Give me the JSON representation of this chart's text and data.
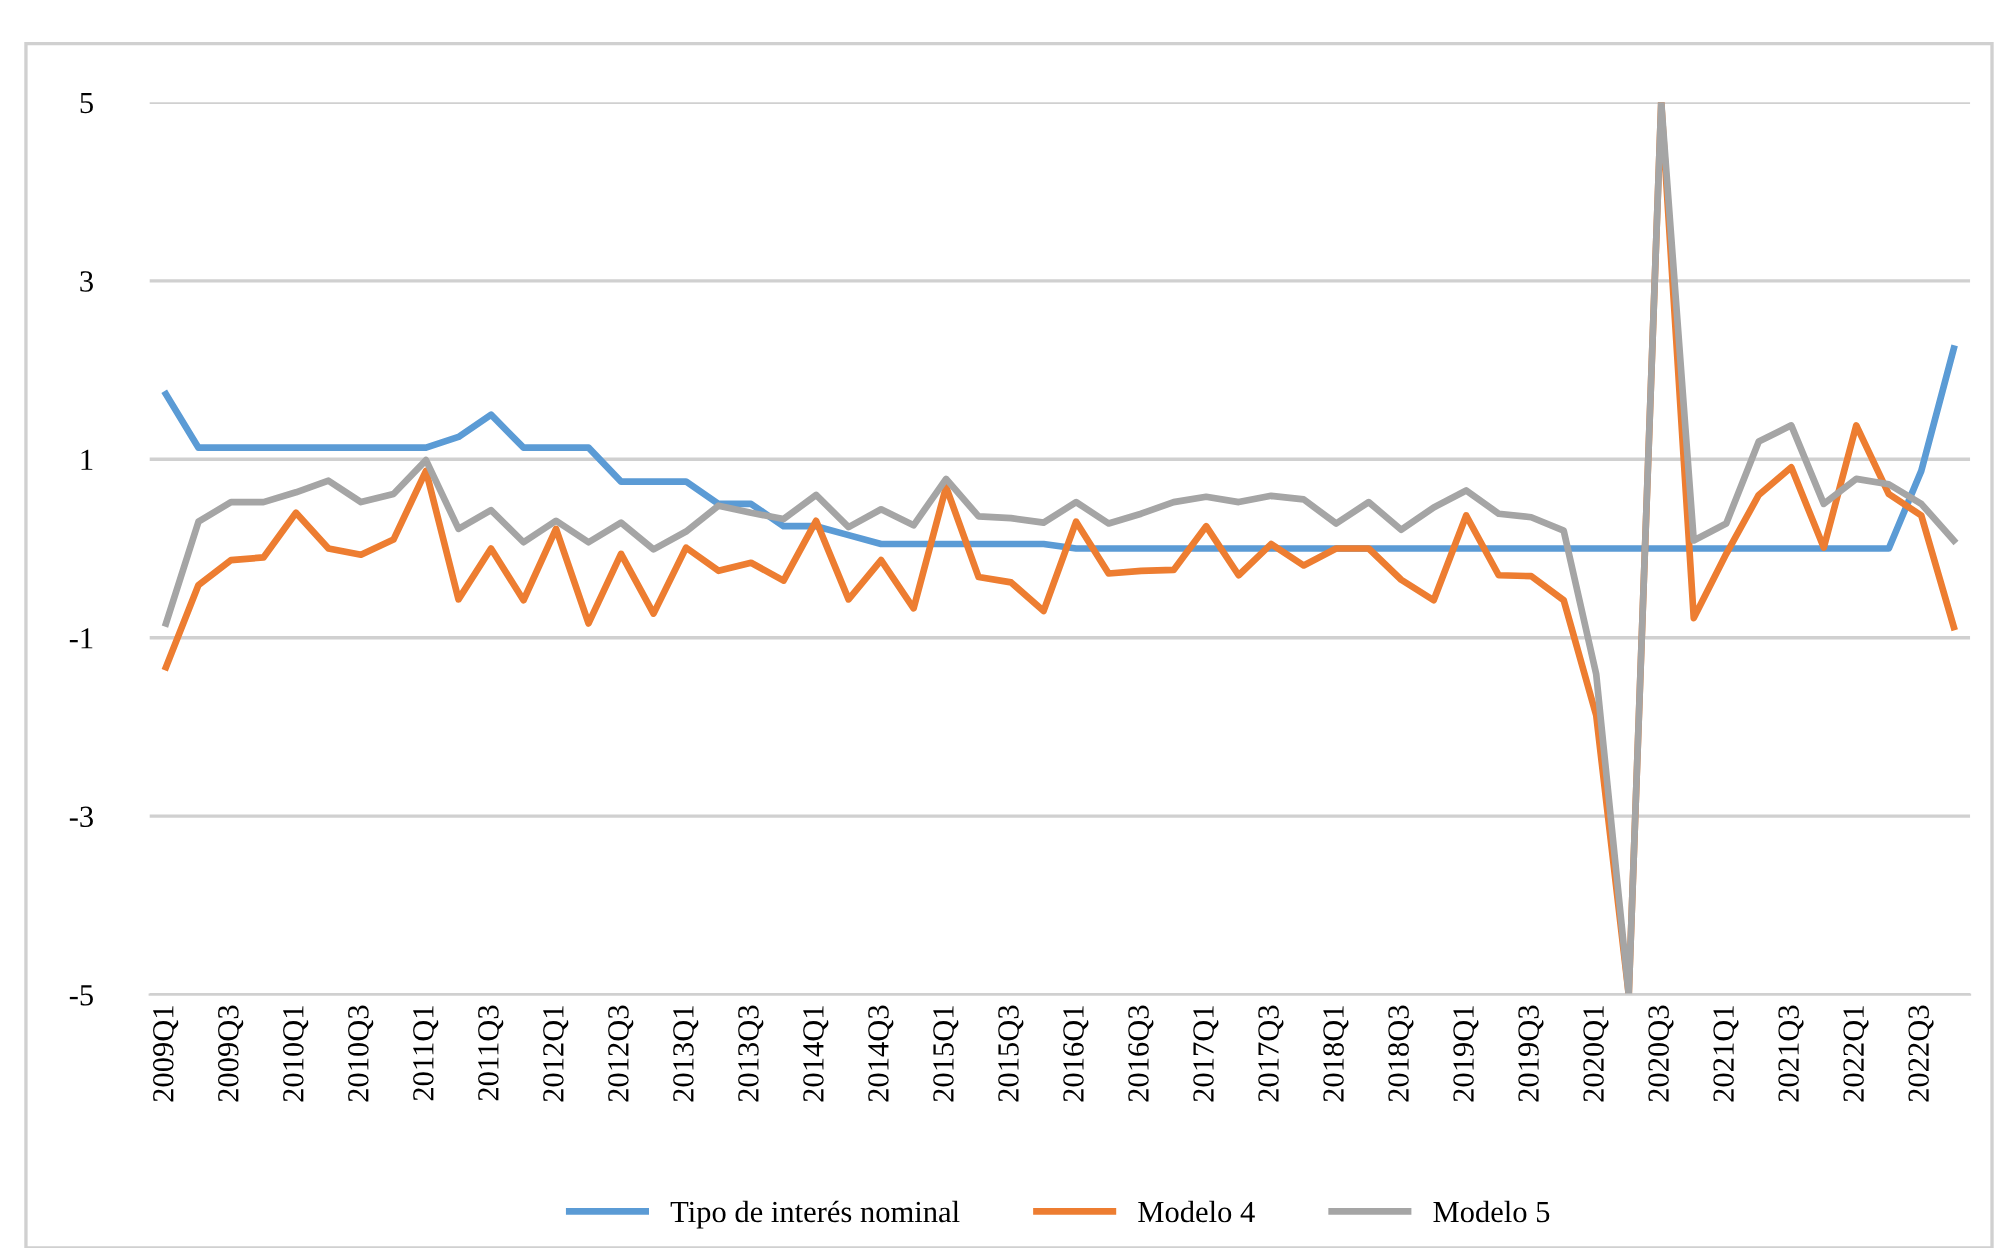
{
  "chart_data": {
    "type": "line",
    "categories": [
      "2009Q1",
      null,
      "2009Q3",
      null,
      "2010Q1",
      null,
      "2010Q3",
      null,
      "2011Q1",
      null,
      "2011Q3",
      null,
      "2012Q1",
      null,
      "2012Q3",
      null,
      "2013Q1",
      null,
      "2013Q3",
      null,
      "2014Q1",
      null,
      "2014Q3",
      null,
      "2015Q1",
      null,
      "2015Q3",
      null,
      "2016Q1",
      null,
      "2016Q3",
      null,
      "2017Q1",
      null,
      "2017Q3",
      null,
      "2018Q1",
      null,
      "2018Q3",
      null,
      "2019Q1",
      null,
      "2019Q3",
      null,
      "2020Q1",
      null,
      "2020Q3",
      null,
      "2021Q1",
      null,
      "2021Q3",
      null,
      "2022Q1",
      null,
      "2022Q3",
      null
    ],
    "series": [
      {
        "name": "Tipo de interés nominal",
        "color": "#5b9bd5",
        "values": [
          1.73,
          1.13,
          1.13,
          1.13,
          1.13,
          1.13,
          1.13,
          1.13,
          1.13,
          1.25,
          1.5,
          1.13,
          1.13,
          1.13,
          0.75,
          0.75,
          0.75,
          0.5,
          0.5,
          0.25,
          0.25,
          0.15,
          0.05,
          0.05,
          0.05,
          0.05,
          0.05,
          0.05,
          0.0,
          0.0,
          0.0,
          0.0,
          0.0,
          0.0,
          0.0,
          0.0,
          0.0,
          0.0,
          0.0,
          0.0,
          0.0,
          0.0,
          0.0,
          0.0,
          0.0,
          0.0,
          0.0,
          0.0,
          0.0,
          0.0,
          0.0,
          0.0,
          0.0,
          0.0,
          0.87,
          2.24
        ]
      },
      {
        "name": "Modelo 4",
        "color": "#ed7d31",
        "values": [
          -1.33,
          -0.41,
          -0.13,
          -0.1,
          0.4,
          0.0,
          -0.07,
          0.1,
          0.87,
          -0.57,
          0.0,
          -0.58,
          0.22,
          -0.84,
          -0.06,
          -0.73,
          0.01,
          -0.25,
          -0.16,
          -0.36,
          0.31,
          -0.57,
          -0.13,
          -0.67,
          0.69,
          -0.32,
          -0.38,
          -0.7,
          0.3,
          -0.28,
          -0.25,
          -0.24,
          0.25,
          -0.3,
          0.05,
          -0.19,
          0.0,
          0.0,
          -0.35,
          -0.58,
          0.37,
          -0.3,
          -0.31,
          -0.58,
          -1.87,
          -5,
          5,
          -0.78,
          -0.06,
          0.6,
          0.91,
          0.01,
          1.38,
          0.61,
          0.37,
          -0.88
        ]
      },
      {
        "name": "Modelo 5",
        "color": "#a5a5a5",
        "values": [
          -0.84,
          0.3,
          0.52,
          0.52,
          0.63,
          0.76,
          0.52,
          0.61,
          0.99,
          0.22,
          0.43,
          0.07,
          0.31,
          0.07,
          0.29,
          -0.01,
          0.19,
          0.48,
          0.4,
          0.33,
          0.6,
          0.24,
          0.44,
          0.26,
          0.78,
          0.36,
          0.34,
          0.29,
          0.52,
          0.28,
          0.39,
          0.52,
          0.58,
          0.52,
          0.59,
          0.55,
          0.28,
          0.52,
          0.21,
          0.46,
          0.65,
          0.39,
          0.35,
          0.2,
          -1.41,
          -5,
          5,
          0.09,
          0.28,
          1.2,
          1.38,
          0.5,
          0.78,
          0.72,
          0.5,
          0.09
        ]
      }
    ],
    "ylim": [
      -5,
      5
    ],
    "yticks": [
      -5,
      -3,
      -1,
      1,
      3,
      5
    ],
    "grid": "y",
    "legend": "bottom",
    "marker": "none",
    "line_style": "solid"
  }
}
